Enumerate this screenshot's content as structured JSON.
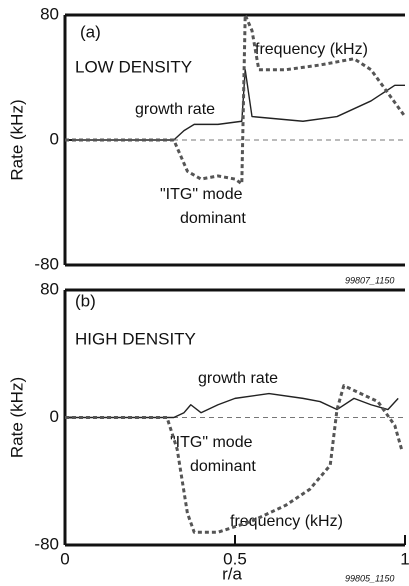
{
  "chart_data": [
    {
      "type": "line",
      "panel_label": "(a)",
      "heading": "LOW DENSITY",
      "ylabel": "Rate (kHz)",
      "annotations": [
        "frequency (kHz)",
        "growth rate",
        "\"ITG\" mode",
        "dominant"
      ],
      "figure_id": "99807_1150",
      "xlim": [
        0,
        1
      ],
      "ylim": [
        -80,
        80
      ],
      "yticks": [
        -80,
        0,
        80
      ],
      "zero_line": 0,
      "series": [
        {
          "name": "growth rate",
          "color": "#222222",
          "style": "solid",
          "x": [
            0,
            0.32,
            0.35,
            0.38,
            0.45,
            0.52,
            0.53,
            0.55,
            0.6,
            0.7,
            0.8,
            0.9,
            0.97,
            1.0
          ],
          "values": [
            0,
            0,
            6,
            10,
            10,
            12,
            45,
            15,
            14,
            12,
            15,
            25,
            35,
            35
          ]
        },
        {
          "name": "frequency (kHz)",
          "color": "#555555",
          "style": "dashed",
          "x": [
            0,
            0.32,
            0.33,
            0.36,
            0.4,
            0.45,
            0.5,
            0.52,
            0.53,
            0.55,
            0.57,
            0.65,
            0.75,
            0.85,
            0.9,
            0.95,
            1.0
          ],
          "values": [
            0,
            0,
            -5,
            -20,
            -25,
            -23,
            -25,
            -28,
            80,
            70,
            45,
            45,
            48,
            52,
            45,
            30,
            15
          ]
        }
      ]
    },
    {
      "type": "line",
      "panel_label": "(b)",
      "heading": "HIGH DENSITY",
      "ylabel": "Rate (kHz)",
      "xlabel": "r/a",
      "annotations": [
        "growth rate",
        "\"ITG\" mode",
        "dominant",
        "frequency (kHz)"
      ],
      "figure_id": "99805_1150",
      "xlim": [
        0,
        1
      ],
      "ylim": [
        -80,
        80
      ],
      "yticks": [
        -80,
        0,
        80
      ],
      "xticks": [
        0,
        0.5,
        1
      ],
      "zero_line": 0,
      "series": [
        {
          "name": "growth rate",
          "color": "#222222",
          "style": "solid",
          "x": [
            0,
            0.32,
            0.35,
            0.37,
            0.4,
            0.45,
            0.5,
            0.6,
            0.7,
            0.75,
            0.8,
            0.85,
            0.9,
            0.95,
            0.98
          ],
          "values": [
            0,
            0,
            3,
            8,
            3,
            8,
            12,
            15,
            12,
            10,
            5,
            12,
            8,
            5,
            12
          ]
        },
        {
          "name": "frequency (kHz)",
          "color": "#555555",
          "style": "dashed",
          "x": [
            0,
            0.3,
            0.33,
            0.36,
            0.38,
            0.45,
            0.55,
            0.65,
            0.72,
            0.78,
            0.8,
            0.82,
            0.87,
            0.92,
            0.97,
            0.99
          ],
          "values": [
            0,
            0,
            -20,
            -60,
            -72,
            -72,
            -65,
            -55,
            -45,
            -30,
            5,
            20,
            15,
            10,
            -5,
            -20
          ]
        }
      ]
    }
  ]
}
